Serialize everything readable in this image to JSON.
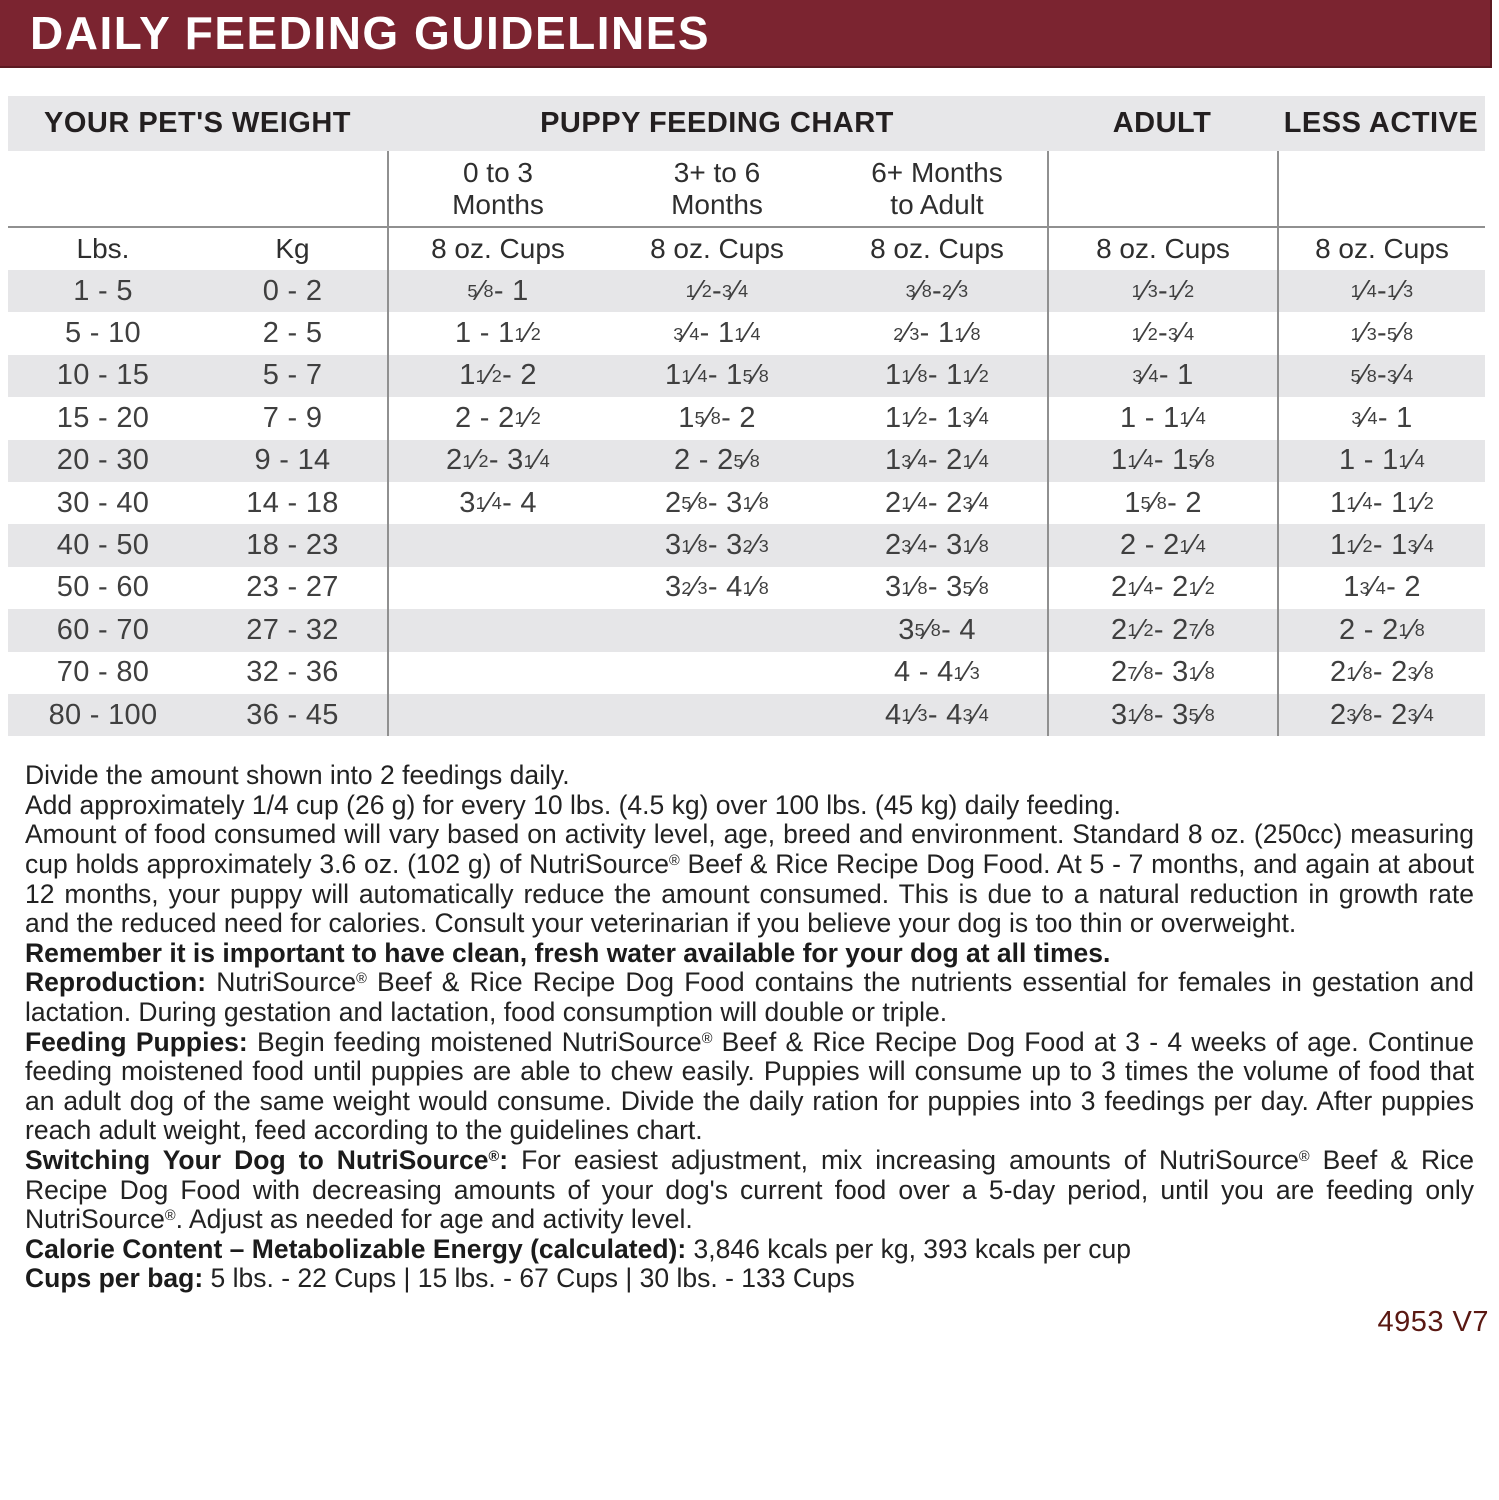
{
  "title": "DAILY FEEDING GUIDELINES",
  "colors": {
    "maroon": "#7b2430",
    "band_gray": "#e7e7e9",
    "row_gray": "#e6e6e8",
    "footer_red": "#5a1812"
  },
  "table": {
    "section_headers": {
      "weight": "YOUR PET'S WEIGHT",
      "puppy": "PUPPY FEEDING CHART",
      "adult": "ADULT",
      "less": "LESS ACTIVE"
    },
    "age_headers": {
      "m0_3": "0 to 3\nMonths",
      "m3_6": "3+ to 6\nMonths",
      "m6p": "6+ Months\nto Adult"
    },
    "unit_headers": {
      "lbs": "Lbs.",
      "kg": "Kg",
      "cups": "8 oz. Cups"
    },
    "rows": [
      {
        "lbs": "1 - 5",
        "kg": "0 - 2",
        "m0_3": "5/8 - 1",
        "m3_6": "1/2 - 3/4",
        "m6p": "3/8 - 2/3",
        "adult": "1/3 - 1/2",
        "less": "1/4 - 1/3"
      },
      {
        "lbs": "5 - 10",
        "kg": "2 - 5",
        "m0_3": "1 - 1 1/2",
        "m3_6": "3/4 - 1 1/4",
        "m6p": "2/3 - 1 1/8",
        "adult": "1/2 - 3/4",
        "less": "1/3 - 5/8"
      },
      {
        "lbs": "10 - 15",
        "kg": "5 - 7",
        "m0_3": "1 1/2 - 2",
        "m3_6": "1 1/4 - 1 5/8",
        "m6p": "1 1/8 - 1 1/2",
        "adult": "3/4 - 1",
        "less": "5/8 - 3/4"
      },
      {
        "lbs": "15 - 20",
        "kg": "7 - 9",
        "m0_3": "2 - 2 1/2",
        "m3_6": "1 5/8 - 2",
        "m6p": "1 1/2 - 1 3/4",
        "adult": "1 - 1 1/4",
        "less": "3/4 - 1"
      },
      {
        "lbs": "20 - 30",
        "kg": "9 - 14",
        "m0_3": "2 1/2 - 3 1/4",
        "m3_6": "2 - 2 5/8",
        "m6p": "1 3/4 - 2 1/4",
        "adult": "1 1/4 - 1 5/8",
        "less": "1 - 1 1/4"
      },
      {
        "lbs": "30 - 40",
        "kg": "14 - 18",
        "m0_3": "3 1/4 - 4",
        "m3_6": "2 5/8 - 3 1/8",
        "m6p": "2 1/4 - 2 3/4",
        "adult": "1 5/8 - 2",
        "less": "1 1/4 - 1 1/2"
      },
      {
        "lbs": "40 - 50",
        "kg": "18 - 23",
        "m0_3": "",
        "m3_6": "3 1/8 - 3 2/3",
        "m6p": "2 3/4 - 3 1/8",
        "adult": "2 - 2 1/4",
        "less": "1 1/2 - 1 3/4"
      },
      {
        "lbs": "50 - 60",
        "kg": "23 - 27",
        "m0_3": "",
        "m3_6": "3 2/3 - 4 1/8",
        "m6p": "3 1/8 - 3 5/8",
        "adult": "2 1/4 - 2 1/2",
        "less": "1 3/4 - 2"
      },
      {
        "lbs": "60 - 70",
        "kg": "27 - 32",
        "m0_3": "",
        "m3_6": "",
        "m6p": "3 5/8 - 4",
        "adult": "2 1/2 - 2 7/8",
        "less": "2 - 2 1/8"
      },
      {
        "lbs": "70 - 80",
        "kg": "32 - 36",
        "m0_3": "",
        "m3_6": "",
        "m6p": "4 - 4 1/3",
        "adult": "2 7/8 - 3 1/8",
        "less": "2 1/8 - 2 3/8"
      },
      {
        "lbs": "80 - 100",
        "kg": "36 - 45",
        "m0_3": "",
        "m3_6": "",
        "m6p": "4 1/3 - 4 3/4",
        "adult": "3 1/8 - 3 5/8",
        "less": "2 3/8 - 2 3/4"
      }
    ]
  },
  "notes": {
    "line1": "Divide the amount shown into 2 feedings daily.",
    "line2": "Add approximately 1/4 cup (26 g) for every 10 lbs. (4.5 kg) over 100 lbs. (45 kg) daily feeding.",
    "para": "Amount of food consumed will vary based on activity level, age, breed and environment. Standard 8 oz. (250cc) measuring cup holds approximately 3.6 oz. (102 g)  of NutriSource® Beef & Rice Recipe Dog Food. At 5 - 7 months, and again at about 12 months, your puppy will automatically reduce the amount consumed. This is due to a natural reduction in growth rate and the reduced need for calories. Consult your veterinarian if you believe your dog is too thin or overweight.",
    "water": "Remember it is important to have clean, fresh water available for your dog at all times."
  },
  "sections": [
    {
      "label": "Reproduction:",
      "text": " NutriSource® Beef & Rice Recipe Dog Food contains the nutrients essential for females in gestation and lactation. During gestation and lactation, food consumption will double or triple."
    },
    {
      "label": "Feeding Puppies:",
      "text": " Begin feeding moistened NutriSource® Beef & Rice Recipe Dog Food at 3 - 4 weeks of age. Continue feeding moistened food until puppies are able to chew easily. Puppies will consume up to 3 times the volume of food that an adult dog of the same weight would consume. Divide the daily ration for puppies into 3 feedings per day. After puppies reach adult weight, feed according to the guidelines chart."
    },
    {
      "label": "Switching Your Dog to NutriSource®:",
      "text": " For easiest adjustment, mix increasing amounts of NutriSource® Beef & Rice Recipe Dog Food with decreasing amounts of your dog's current food over a 5-day period, until you are feeding only NutriSource®. Adjust as needed for age and activity level."
    }
  ],
  "calorie": {
    "label": "Calorie Content – Metabolizable Energy (calculated):",
    "text": " 3,846 kcals per kg, 393 kcals per cup"
  },
  "cups_per_bag": {
    "label": "Cups per bag:",
    "text": "  5 lbs. - 22 Cups  |  15 lbs. - 67 Cups  |  30 lbs. -  133 Cups"
  },
  "footer": "4953 V7"
}
